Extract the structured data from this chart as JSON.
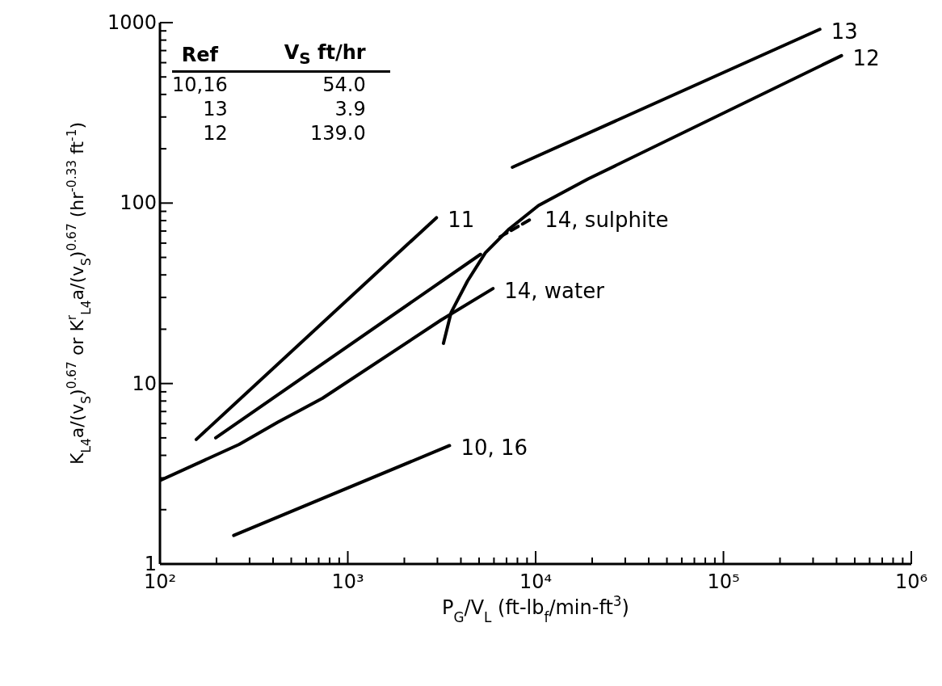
{
  "chart_data": {
    "type": "line",
    "xlabel": "P$_{G}$/V$_{L}$  (ft-lb$_{f}$/min-ft$^{3}$)",
    "ylabel": "K$_{L4}$a/(v$_{S}$)$^{0.67}$ or K$^{r}$$_{L4}$a/(v$_{S}$)$^{0.67}$  (hr$^{-0.33}$ ft$^{-1}$)",
    "log": "xy",
    "marker": "none",
    "line_style": "solid",
    "grid": false,
    "legend": false,
    "xlim": [
      100,
      1000000
    ],
    "ylim": [
      1,
      1000
    ],
    "xticks": [
      {
        "value": 100,
        "label": "10²"
      },
      {
        "value": 200,
        "label": null
      },
      {
        "value": 300,
        "label": null
      },
      {
        "value": 400,
        "label": null
      },
      {
        "value": 500,
        "label": null
      },
      {
        "value": 600,
        "label": null
      },
      {
        "value": 700,
        "label": null
      },
      {
        "value": 800,
        "label": null
      },
      {
        "value": 900,
        "label": null
      },
      {
        "value": 1000,
        "label": "10³"
      },
      {
        "value": 2000,
        "label": null
      },
      {
        "value": 3000,
        "label": null
      },
      {
        "value": 4000,
        "label": null
      },
      {
        "value": 5000,
        "label": null
      },
      {
        "value": 6000,
        "label": null
      },
      {
        "value": 7000,
        "label": null
      },
      {
        "value": 8000,
        "label": null
      },
      {
        "value": 9000,
        "label": null
      },
      {
        "value": 10000,
        "label": "10⁴"
      },
      {
        "value": 20000,
        "label": null
      },
      {
        "value": 30000,
        "label": null
      },
      {
        "value": 40000,
        "label": null
      },
      {
        "value": 50000,
        "label": null
      },
      {
        "value": 60000,
        "label": null
      },
      {
        "value": 70000,
        "label": null
      },
      {
        "value": 80000,
        "label": null
      },
      {
        "value": 90000,
        "label": null
      },
      {
        "value": 100000,
        "label": "10⁵"
      },
      {
        "value": 200000,
        "label": null
      },
      {
        "value": 300000,
        "label": null
      },
      {
        "value": 400000,
        "label": null
      },
      {
        "value": 500000,
        "label": null
      },
      {
        "value": 600000,
        "label": null
      },
      {
        "value": 700000,
        "label": null
      },
      {
        "value": 800000,
        "label": null
      },
      {
        "value": 900000,
        "label": null
      },
      {
        "value": 1000000,
        "label": "10⁶"
      }
    ],
    "yticks": [
      1,
      {
        "value": 2,
        "label": null
      },
      {
        "value": 3,
        "label": null
      },
      {
        "value": 4,
        "label": null
      },
      {
        "value": 5,
        "label": null
      },
      {
        "value": 6,
        "label": null
      },
      {
        "value": 7,
        "label": null
      },
      {
        "value": 8,
        "label": null
      },
      {
        "value": 9,
        "label": null
      },
      10,
      {
        "value": 20,
        "label": null
      },
      {
        "value": 30,
        "label": null
      },
      {
        "value": 40,
        "label": null
      },
      {
        "value": 50,
        "label": null
      },
      {
        "value": 60,
        "label": null
      },
      {
        "value": 70,
        "label": null
      },
      {
        "value": 80,
        "label": null
      },
      {
        "value": 90,
        "label": null
      },
      100,
      {
        "value": 200,
        "label": null
      },
      {
        "value": 300,
        "label": null
      },
      {
        "value": 400,
        "label": null
      },
      {
        "value": 500,
        "label": null
      },
      {
        "value": 600,
        "label": null
      },
      {
        "value": 700,
        "label": null
      },
      {
        "value": 800,
        "label": null
      },
      {
        "value": 900,
        "label": null
      },
      1000
    ],
    "annotations": [
      "Ref",
      "V$_{S}$ ft/hr",
      "10,16",
      "54.0",
      "13",
      "3.9",
      "12",
      "139.0"
    ],
    "series": [
      {
        "name": "11",
        "color": "#000000",
        "x": [
          156,
          2965
        ],
        "values": [
          4.9,
          83
        ]
      },
      {
        "color": "#000000",
        "x": [
          198,
          5090
        ],
        "values": [
          5.0,
          52
        ]
      },
      {
        "name": "14, water",
        "color": "#000000",
        "x": [
          100,
          264,
          424,
          735,
          3140,
          5930
        ],
        "values": [
          2.9,
          4.6,
          6.1,
          8.3,
          22.5,
          33.6
        ]
      },
      {
        "name": "12",
        "color": "#000000",
        "x": [
          3230,
          3550,
          4340,
          5400,
          7240,
          10370,
          19000,
          425000
        ],
        "values": [
          16.7,
          24.8,
          37,
          53,
          72,
          97,
          136,
          656
        ]
      },
      {
        "name": "14, sulphite",
        "color": "#000000",
        "line_style": "dashed",
        "x": [
          6460,
          9730
        ],
        "values": [
          65,
          83
        ]
      },
      {
        "name": "13",
        "color": "#000000",
        "x": [
          7520,
          326000
        ],
        "values": [
          158,
          918
        ]
      },
      {
        "name": "10, 16",
        "color": "#000000",
        "x": [
          247,
          3480
        ],
        "values": [
          1.44,
          4.53
        ]
      }
    ]
  }
}
